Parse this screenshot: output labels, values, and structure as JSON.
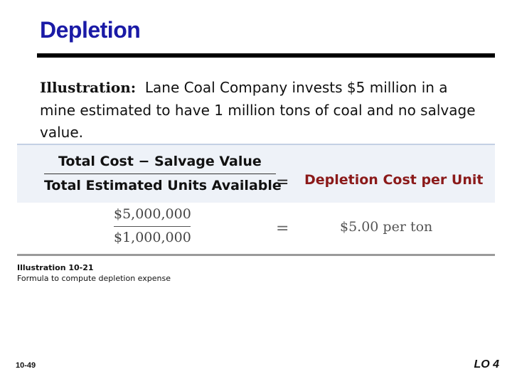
{
  "slide": {
    "title": "Depletion",
    "illustration_lead": "Illustration:",
    "illustration_text": "Lane Coal Company invests $5 million in a mine estimated to have 1 million tons of coal and no salvage value."
  },
  "formula": {
    "numerator": "Total Cost − Salvage Value",
    "denominator": "Total Estimated Units Available",
    "equals": "=",
    "result": "Depletion Cost per Unit"
  },
  "calculation": {
    "numerator": "$5,000,000",
    "denominator": "$1,000,000",
    "equals": "=",
    "result": "$5.00 per ton"
  },
  "caption": {
    "heading": "Illustration 10-21",
    "text": "Formula to compute depletion expense"
  },
  "footer": {
    "page_number": "10-49",
    "learning_objective": "LO 4"
  },
  "colors": {
    "title": "#1a1aa6",
    "result": "#8b1a1a",
    "band": "#eef2f8"
  }
}
